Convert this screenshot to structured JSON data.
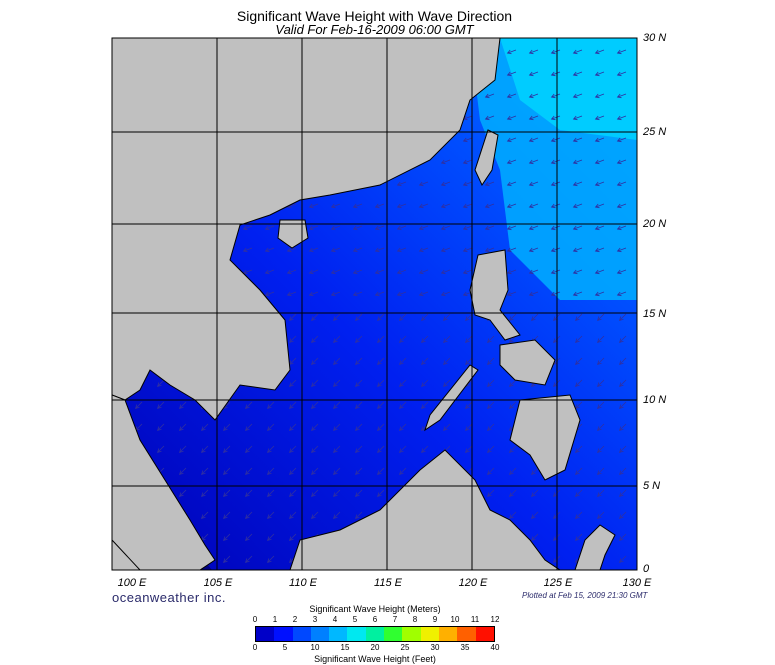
{
  "title": "Significant Wave Height with Wave Direction",
  "subtitle": "Valid For Feb-16-2009 06:00 GMT",
  "brand": "oceanweather inc.",
  "plotted": "Plotted at Feb 15, 2009 21:30 GMT",
  "latitude_labels": [
    "30 N",
    "25 N",
    "20 N",
    "15 N",
    "10 N",
    "5 N",
    "0"
  ],
  "longitude_labels": [
    "100 E",
    "105 E",
    "110 E",
    "115 E",
    "120 E",
    "125 E",
    "130 E"
  ],
  "colorbar": {
    "meters_title": "Significant Wave Height (Meters)",
    "feet_title": "Significant Wave Height (Feet)",
    "meters_ticks": [
      "0",
      "1",
      "2",
      "3",
      "4",
      "5",
      "6",
      "7",
      "8",
      "9",
      "10",
      "11",
      "12"
    ],
    "feet_ticks": [
      "0",
      "5",
      "10",
      "15",
      "20",
      "25",
      "30",
      "35",
      "40"
    ],
    "colors": [
      "#0000c8",
      "#0010ff",
      "#0048ff",
      "#0080ff",
      "#00b8ff",
      "#00e8f0",
      "#00f0a0",
      "#30ff30",
      "#a0ff00",
      "#f0f000",
      "#ffb000",
      "#ff6000",
      "#ff1000"
    ]
  },
  "colors": {
    "land": "#c0c0c0",
    "coast": "#000000",
    "grid": "#000000",
    "arrow": "#3030a0"
  }
}
